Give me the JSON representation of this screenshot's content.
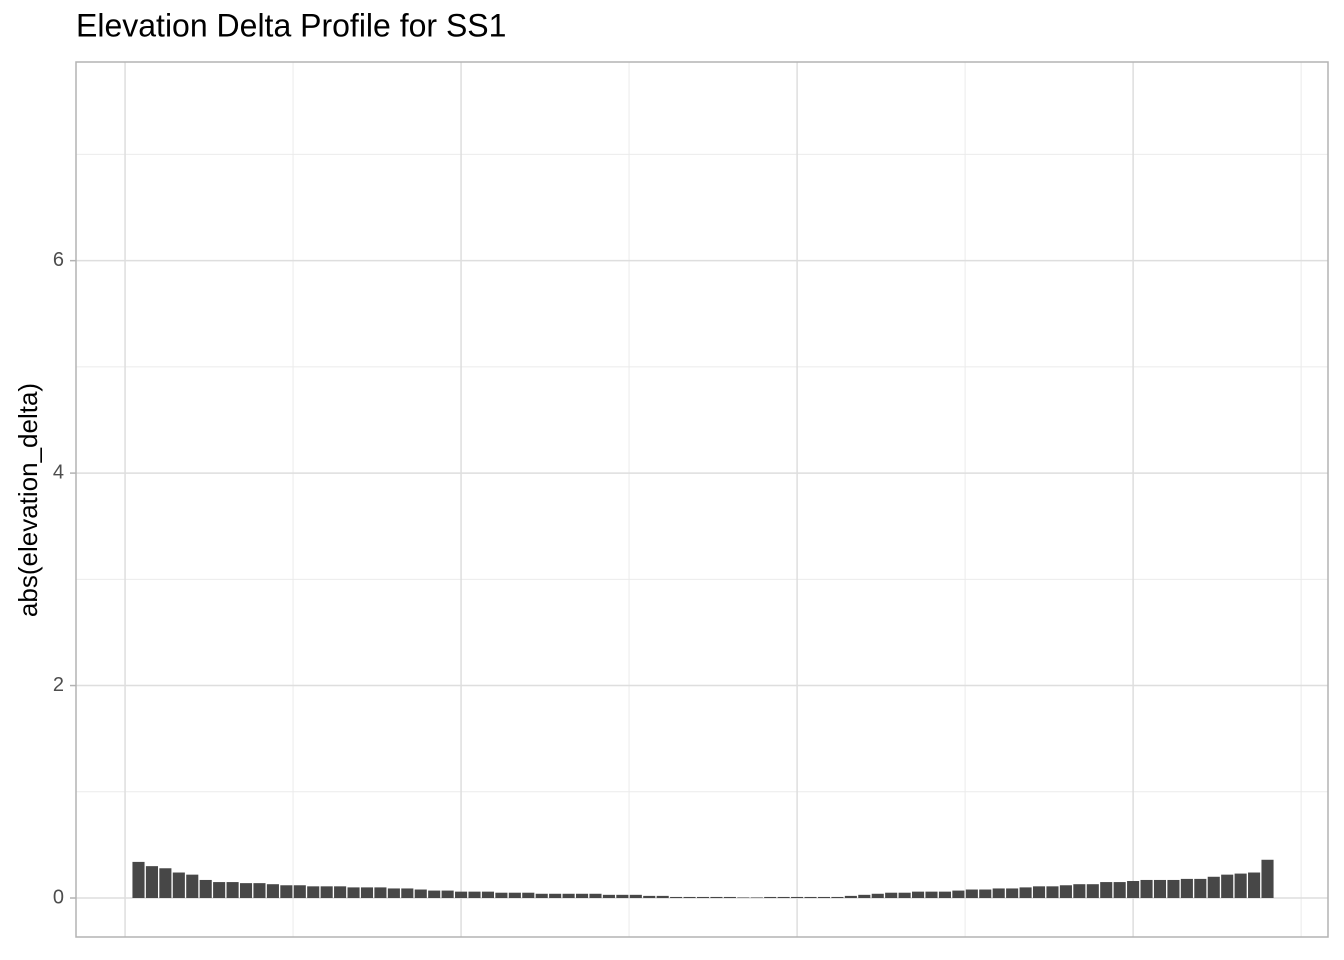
{
  "chart_data": {
    "type": "bar",
    "title": "Elevation Delta Profile for SS1",
    "y_label": "abs(elevation_delta)",
    "x": [
      1,
      2,
      3,
      4,
      5,
      6,
      7,
      8,
      9,
      10,
      11,
      12,
      13,
      14,
      15,
      16,
      17,
      18,
      19,
      20,
      21,
      22,
      23,
      24,
      25,
      26,
      27,
      28,
      29,
      30,
      31,
      32,
      33,
      34,
      35,
      36,
      37,
      38,
      39,
      40,
      41,
      42,
      43,
      44,
      45,
      46,
      47,
      48,
      49,
      50,
      51,
      52,
      53,
      54,
      55,
      56,
      57,
      58,
      59,
      60,
      61,
      62,
      63,
      64,
      65,
      66,
      67,
      68,
      69,
      70,
      71,
      72,
      73,
      74,
      75,
      76,
      77,
      78,
      79,
      80,
      81,
      82,
      83,
      84,
      85
    ],
    "values": [
      0.34,
      0.3,
      0.28,
      0.24,
      0.22,
      0.17,
      0.15,
      0.15,
      0.14,
      0.14,
      0.13,
      0.12,
      0.12,
      0.11,
      0.11,
      0.11,
      0.1,
      0.1,
      0.1,
      0.09,
      0.09,
      0.08,
      0.07,
      0.07,
      0.06,
      0.06,
      0.06,
      0.05,
      0.05,
      0.05,
      0.04,
      0.04,
      0.04,
      0.04,
      0.04,
      0.03,
      0.03,
      0.03,
      0.02,
      0.02,
      0.01,
      0.01,
      0.01,
      0.01,
      0.01,
      0.005,
      0.005,
      0.01,
      0.01,
      0.01,
      0.01,
      0.01,
      0.01,
      0.02,
      0.03,
      0.04,
      0.05,
      0.05,
      0.06,
      0.06,
      0.06,
      0.07,
      0.08,
      0.08,
      0.09,
      0.09,
      0.1,
      0.11,
      0.11,
      0.12,
      0.13,
      0.13,
      0.15,
      0.15,
      0.16,
      0.17,
      0.17,
      0.17,
      0.18,
      0.18,
      0.2,
      0.22,
      0.23,
      0.24,
      0.36
    ],
    "color": "#474747",
    "xlim": [
      -3.65,
      89.5
    ],
    "xgrid": [
      0,
      25,
      50,
      75
    ],
    "xgrid_minor": [
      12.5,
      37.5,
      62.5,
      87.5
    ],
    "ylim": [
      -0.367,
      7.87
    ],
    "yticks": [
      0,
      2,
      4,
      6
    ],
    "ygrid_minor": [
      1,
      3,
      5,
      7
    ],
    "grid": true
  }
}
